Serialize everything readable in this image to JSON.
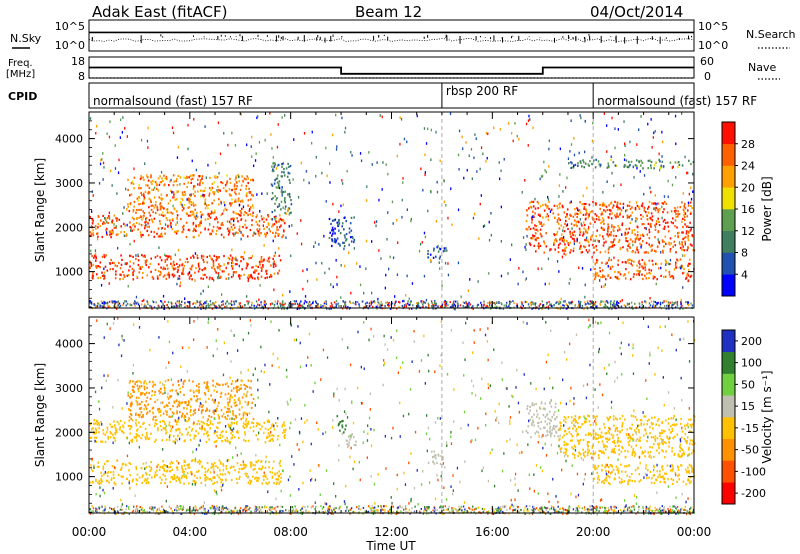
{
  "header": {
    "station": "Adak East (fitACF)",
    "beam": "Beam 12",
    "date": "04/Oct/2014"
  },
  "noise_panel": {
    "left_label": "N.Sky",
    "right_label": "N.Search",
    "left_ticks": [
      "10^5",
      "10^0"
    ],
    "right_ticks": [
      "10^5",
      "10^0"
    ]
  },
  "freq_panel": {
    "left_label_1": "Freq.",
    "left_label_2": "[MHz]",
    "right_label": "Nave",
    "left_ticks": [
      "18",
      "8"
    ],
    "right_ticks": [
      "60",
      "0"
    ]
  },
  "cpid_panel": {
    "label": "CPID",
    "segments": [
      {
        "label": "normalsound (fast) 157 RF",
        "start_h": 0,
        "end_h": 14
      },
      {
        "label": "rbsp 200 RF",
        "start_h": 14,
        "end_h": 20
      },
      {
        "label": "normalsound (fast) 157 RF",
        "start_h": 20,
        "end_h": 24
      }
    ]
  },
  "colors": {
    "power_scale": [
      "#0000ff",
      "#2050b0",
      "#3f7f5f",
      "#5fa050",
      "#f0e000",
      "#ffa000",
      "#ff6000",
      "#ff1000"
    ],
    "velocity_scale": [
      "#ff0000",
      "#ff5000",
      "#ff9000",
      "#ffc000",
      "#c0c0b0",
      "#70d040",
      "#308030",
      "#2030c0"
    ]
  },
  "chart_data": [
    {
      "type": "line",
      "name": "noise",
      "x_unit": "hours UT",
      "series": [
        {
          "name": "N.Sky",
          "x": [
            0,
            2,
            4,
            6,
            8,
            10,
            12,
            14,
            16,
            18,
            20,
            22,
            24
          ],
          "values": [
            3,
            3,
            3,
            3,
            3,
            3,
            3,
            3,
            3,
            3,
            3,
            3,
            3
          ]
        }
      ],
      "ylim": [
        "10^0",
        "10^5"
      ]
    },
    {
      "type": "line",
      "name": "frequency",
      "x_unit": "hours UT",
      "series": [
        {
          "name": "Freq.",
          "x": [
            0,
            10,
            10,
            18,
            18,
            24
          ],
          "values": [
            13,
            13,
            10,
            10,
            13,
            13
          ]
        },
        {
          "name": "Nave",
          "x": [
            0,
            24
          ],
          "values": [
            8,
            8
          ]
        }
      ],
      "ylim": [
        8,
        18
      ]
    },
    {
      "type": "heatmap",
      "name": "power",
      "xlabel": "Time UT",
      "ylabel": "Slant Range [km]",
      "colorbar_label": "Power [dB]",
      "xlim": [
        0,
        24
      ],
      "ylim": [
        180,
        4600
      ],
      "x_ticks": [
        "00:00",
        "04:00",
        "08:00",
        "12:00",
        "16:00",
        "20:00",
        "00:00"
      ],
      "y_ticks": [
        1000,
        2000,
        3000,
        4000
      ],
      "colorbar_ticks": [
        "4",
        "8",
        "12",
        "16",
        "20",
        "24",
        "28"
      ],
      "regions": [
        {
          "t0": 0,
          "t1": 7.6,
          "r0": 850,
          "r1": 1400,
          "level": 28
        },
        {
          "t0": 0,
          "t1": 7.8,
          "r0": 1800,
          "r1": 2300,
          "level": 26
        },
        {
          "t0": 1.5,
          "t1": 6.5,
          "r0": 2300,
          "r1": 3200,
          "level": 24
        },
        {
          "t0": 7.2,
          "t1": 8.0,
          "r0": 2300,
          "r1": 3500,
          "level": 10
        },
        {
          "t0": 9.5,
          "t1": 10.5,
          "r0": 1600,
          "r1": 2300,
          "level": 6
        },
        {
          "t0": 13.4,
          "t1": 14.2,
          "r0": 1300,
          "r1": 1600,
          "level": 6
        },
        {
          "t0": 17.3,
          "t1": 24,
          "r0": 1450,
          "r1": 2600,
          "level": 27
        },
        {
          "t0": 20,
          "t1": 24,
          "r0": 850,
          "r1": 1300,
          "level": 26
        },
        {
          "t0": 19,
          "t1": 24,
          "r0": 3350,
          "r1": 3550,
          "level": 12
        }
      ]
    },
    {
      "type": "heatmap",
      "name": "velocity",
      "xlabel": "Time UT",
      "ylabel": "Slant Range [km]",
      "colorbar_label": "Velocity [m s⁻¹]",
      "xlim": [
        0,
        24
      ],
      "ylim": [
        180,
        4600
      ],
      "x_ticks": [
        "00:00",
        "04:00",
        "08:00",
        "12:00",
        "16:00",
        "20:00",
        "00:00"
      ],
      "y_ticks": [
        1000,
        2000,
        3000,
        4000
      ],
      "colorbar_ticks": [
        "200",
        "100",
        "50",
        "15",
        "-15",
        "-50",
        "-100",
        "-200"
      ],
      "regions": [
        {
          "t0": 0,
          "t1": 7.6,
          "r0": 850,
          "r1": 1400,
          "level": 0
        },
        {
          "t0": 0,
          "t1": 7.8,
          "r0": 1800,
          "r1": 2300,
          "level": 0
        },
        {
          "t0": 1.5,
          "t1": 6.5,
          "r0": 2300,
          "r1": 3200,
          "level": -20
        },
        {
          "t0": 9.8,
          "t1": 10.2,
          "r0": 2000,
          "r1": 2400,
          "level": 150
        },
        {
          "t0": 10,
          "t1": 10.6,
          "r0": 1700,
          "r1": 2000,
          "level": 40
        },
        {
          "t0": 13.4,
          "t1": 14.2,
          "r0": 1300,
          "r1": 1600,
          "level": 40
        },
        {
          "t0": 17.3,
          "t1": 18.6,
          "r0": 1900,
          "r1": 2700,
          "level": 40
        },
        {
          "t0": 18.6,
          "t1": 24,
          "r0": 1450,
          "r1": 2400,
          "level": 0
        },
        {
          "t0": 20,
          "t1": 24,
          "r0": 850,
          "r1": 1300,
          "level": 0
        }
      ]
    }
  ]
}
